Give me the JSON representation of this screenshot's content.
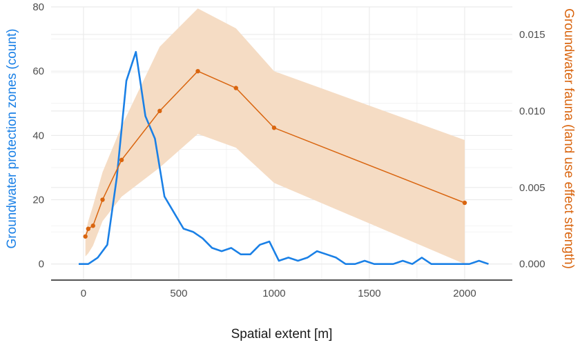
{
  "chart_data": {
    "type": "line",
    "xlabel": "Spatial extent [m]",
    "ylabel_left": "Groundwater protection zones (count)",
    "ylabel_right": "Groundwater fauna (land use effect strength)",
    "xlim": [
      -170,
      2250
    ],
    "x_ticks": [
      0,
      500,
      1000,
      1500,
      2000
    ],
    "ylim_left": [
      -5,
      80
    ],
    "y_ticks_left": [
      0,
      20,
      40,
      60,
      80
    ],
    "ylim_right": [
      -0.00105,
      0.0168
    ],
    "y_ticks_right": [
      "0.000",
      "0.005",
      "0.010",
      "0.015"
    ],
    "y_tick_values_right": [
      0,
      0.005,
      0.01,
      0.015
    ],
    "grid": true,
    "colors": {
      "count": "#1a80e6",
      "effect": "#d9650f",
      "ribbon": "#f5dcc4",
      "grid": "#ebebeb"
    },
    "series": [
      {
        "axis": "left",
        "x": [
          -25,
          25,
          75,
          125,
          175,
          225,
          275,
          325,
          375,
          425,
          475,
          525,
          575,
          625,
          675,
          725,
          775,
          825,
          875,
          925,
          975,
          1025,
          1075,
          1125,
          1175,
          1225,
          1275,
          1325,
          1375,
          1425,
          1475,
          1525,
          1575,
          1625,
          1675,
          1725,
          1775,
          1825,
          1875,
          1925,
          1975,
          2025,
          2075,
          2125
        ],
        "y": [
          0,
          0,
          2,
          6,
          27,
          57,
          66,
          46,
          39,
          21,
          16,
          11,
          10,
          8,
          5,
          4,
          5,
          3,
          3,
          6,
          7,
          1,
          2,
          1,
          2,
          4,
          3,
          2,
          0,
          0,
          1,
          0,
          0,
          0,
          1,
          0,
          2,
          0,
          0,
          0,
          0,
          0,
          1,
          0
        ]
      },
      {
        "axis": "right",
        "x": [
          10,
          25,
          50,
          100,
          200,
          400,
          600,
          800,
          1000,
          2000
        ],
        "y": [
          0.0018,
          0.0023,
          0.0025,
          0.0042,
          0.0068,
          0.01,
          0.0126,
          0.0115,
          0.0089,
          0.004
        ],
        "lower": [
          0.0005,
          0.0007,
          0.0012,
          0.0028,
          0.0044,
          0.0063,
          0.0085,
          0.0076,
          0.0053,
          0.0
        ],
        "upper": [
          0.002,
          0.0028,
          0.0038,
          0.006,
          0.009,
          0.0142,
          0.0167,
          0.0154,
          0.0126,
          0.0081
        ]
      }
    ]
  }
}
